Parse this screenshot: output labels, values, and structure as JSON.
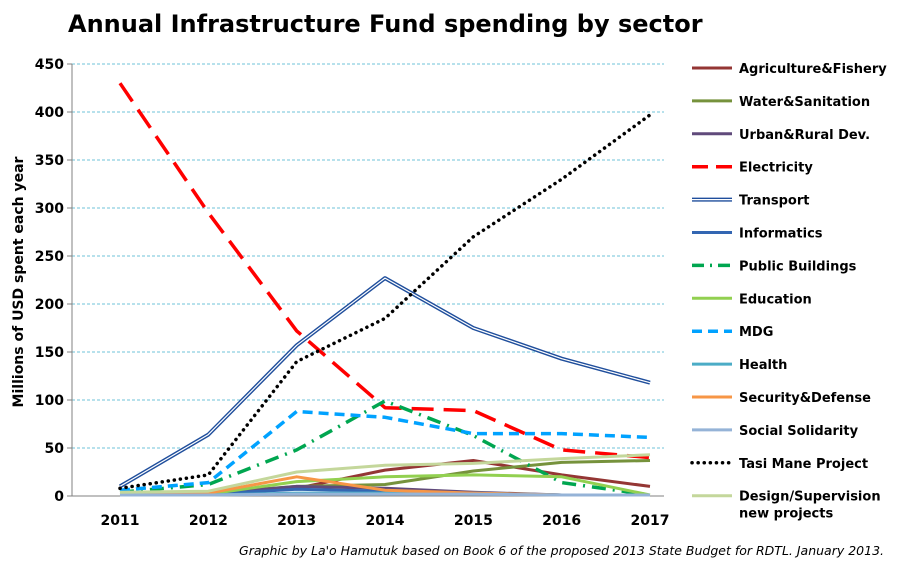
{
  "chart_data": {
    "type": "line",
    "title": "Annual Infrastructure Fund spending by sector",
    "ylabel": "Millions of USD spent each year",
    "xlabel": "",
    "credit": "Graphic by La'o Hamutuk based on Book 6 of the proposed 2013 State Budget for RDTL.  January 2013.",
    "x": [
      "2011",
      "2012",
      "2013",
      "2014",
      "2015",
      "2016",
      "2017"
    ],
    "ylim": [
      0,
      450
    ],
    "yticks": [
      "0",
      "50",
      "100",
      "150",
      "200",
      "250",
      "300",
      "350",
      "400",
      "450"
    ],
    "grid": true,
    "legend_position": "right",
    "series": [
      {
        "name": "Agriculture&Fishery",
        "values": [
          3,
          4,
          8,
          27,
          37,
          22,
          10
        ],
        "color": "#943634",
        "dash": "solid",
        "width": 3
      },
      {
        "name": "Water&Sanitation",
        "values": [
          2,
          3,
          10,
          12,
          26,
          35,
          37
        ],
        "color": "#76923c",
        "dash": "solid",
        "width": 3
      },
      {
        "name": "Urban&Rural Dev.",
        "values": [
          1,
          2,
          10,
          8,
          4,
          1,
          1
        ],
        "color": "#604a7b",
        "dash": "solid",
        "width": 3
      },
      {
        "name": "Electricity",
        "values": [
          430,
          295,
          172,
          92,
          89,
          48,
          40
        ],
        "color": "#ff0000",
        "dash": "long",
        "width": 3.5
      },
      {
        "name": "Transport",
        "values": [
          10,
          64,
          157,
          227,
          175,
          143,
          118
        ],
        "color": "#1f4e9c",
        "dash": "double",
        "width": 4
      },
      {
        "name": "Informatics",
        "values": [
          1,
          2,
          7,
          5,
          3,
          1,
          1
        ],
        "color": "#3366b2",
        "dash": "solid",
        "width": 3
      },
      {
        "name": "Public Buildings",
        "values": [
          4,
          12,
          48,
          99,
          63,
          14,
          1
        ],
        "color": "#00a650",
        "dash": "dashdot",
        "width": 3.5
      },
      {
        "name": "Education",
        "values": [
          1,
          2,
          15,
          20,
          22,
          20,
          1
        ],
        "color": "#92d050",
        "dash": "solid",
        "width": 3
      },
      {
        "name": "MDG",
        "values": [
          6,
          14,
          88,
          82,
          65,
          65,
          61
        ],
        "color": "#00a2ff",
        "dash": "medium",
        "width": 3.5
      },
      {
        "name": "Health",
        "values": [
          1,
          1,
          3,
          3,
          3,
          1,
          1
        ],
        "color": "#4bacc6",
        "dash": "solid",
        "width": 3
      },
      {
        "name": "Security&Defense",
        "values": [
          2,
          3,
          20,
          6,
          3,
          1,
          1
        ],
        "color": "#f79646",
        "dash": "solid",
        "width": 3
      },
      {
        "name": "Social Solidarity",
        "values": [
          1,
          1,
          2,
          2,
          2,
          1,
          1
        ],
        "color": "#95b3d7",
        "dash": "solid",
        "width": 3
      },
      {
        "name": "Tasi Mane Project",
        "values": [
          8,
          22,
          140,
          185,
          270,
          330,
          397
        ],
        "color": "#000000",
        "dash": "dotted",
        "width": 3.5
      },
      {
        "name": "Design/Supervision new projects",
        "label_lines": [
          "Design/Supervision",
          "new projects"
        ],
        "values": [
          4,
          5,
          25,
          32,
          34,
          39,
          43
        ],
        "color": "#c4d79b",
        "dash": "solid",
        "width": 3
      }
    ]
  }
}
